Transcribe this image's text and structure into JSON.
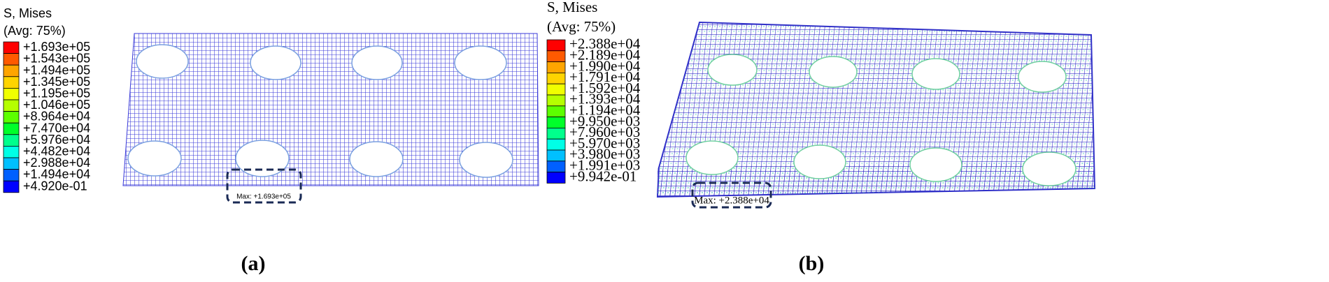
{
  "panels": [
    {
      "legend_title": "S, Mises",
      "legend_subtitle": "(Avg: 75%)",
      "legend_labels": [
        "+1.693e+05",
        "+1.543e+05",
        "+1.494e+05",
        "+1.345e+05",
        "+1.195e+05",
        "+1.046e+05",
        "+8.964e+04",
        "+7.470e+04",
        "+5.976e+04",
        "+4.482e+04",
        "+2.988e+04",
        "+1.494e+04",
        "+4.920e-01"
      ],
      "annotation": "Max: +1.693e+05",
      "caption": "(a)"
    },
    {
      "legend_title": "S, Mises",
      "legend_subtitle": "(Avg: 75%)",
      "legend_labels": [
        "+2.388e+04",
        "+2.189e+04",
        "+1.990e+04",
        "+1.791e+04",
        "+1.592e+04",
        "+1.393e+04",
        "+1.194e+04",
        "+9.950e+03",
        "+7.960e+03",
        "+5.970e+03",
        "+3.980e+03",
        "+1.991e+03",
        "+9.942e-01"
      ],
      "annotation": "Max: +2.388e+04",
      "caption": "(b)"
    }
  ],
  "legend_colors": [
    "#ff0000",
    "#ff5a00",
    "#ffa500",
    "#ffd400",
    "#f0ff00",
    "#b5ff00",
    "#5cff00",
    "#00ff2a",
    "#00ff8c",
    "#00ffe6",
    "#00c0ff",
    "#0060ff",
    "#0000ff"
  ]
}
